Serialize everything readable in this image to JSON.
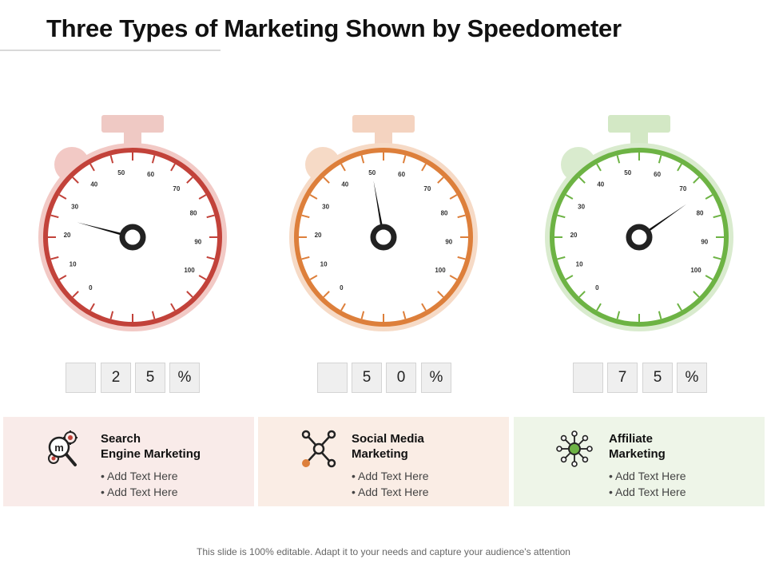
{
  "title": "Three Types of Marketing Shown by Speedometer",
  "footer": "This slide is 100% editable. Adapt it to your needs and capture your audience's attention",
  "scale_labels": [
    "0",
    "10",
    "20",
    "30",
    "40",
    "50",
    "60",
    "70",
    "80",
    "90",
    "100"
  ],
  "gauges": [
    {
      "value": 25,
      "digits": [
        "",
        "2",
        "5",
        "%"
      ],
      "ring_color": "#c2423a",
      "halo_color": "#f2c9c5",
      "tab_color": "#efc9c4",
      "heading_line1": "Search",
      "heading_line2": "Engine Marketing",
      "bullets": [
        "Add Text Here",
        "Add Text Here"
      ],
      "card_color": "#f9ebe9",
      "icon": "seo-magnifier-gear-icon"
    },
    {
      "value": 50,
      "digits": [
        "",
        "5",
        "0",
        "%"
      ],
      "ring_color": "#dd7f3b",
      "halo_color": "#f6dac6",
      "tab_color": "#f4d3c0",
      "heading_line1": "Social Media",
      "heading_line2": "Marketing",
      "bullets": [
        "Add Text Here",
        "Add Text Here"
      ],
      "card_color": "#faede5",
      "icon": "network-nodes-icon"
    },
    {
      "value": 75,
      "digits": [
        "",
        "7",
        "5",
        "%"
      ],
      "ring_color": "#6db344",
      "halo_color": "#d9ebce",
      "tab_color": "#d3e8c5",
      "heading_line1": "Affiliate",
      "heading_line2": "Marketing",
      "bullets": [
        "Add Text Here",
        "Add Text Here"
      ],
      "card_color": "#eef5e8",
      "icon": "affiliate-network-icon"
    }
  ]
}
